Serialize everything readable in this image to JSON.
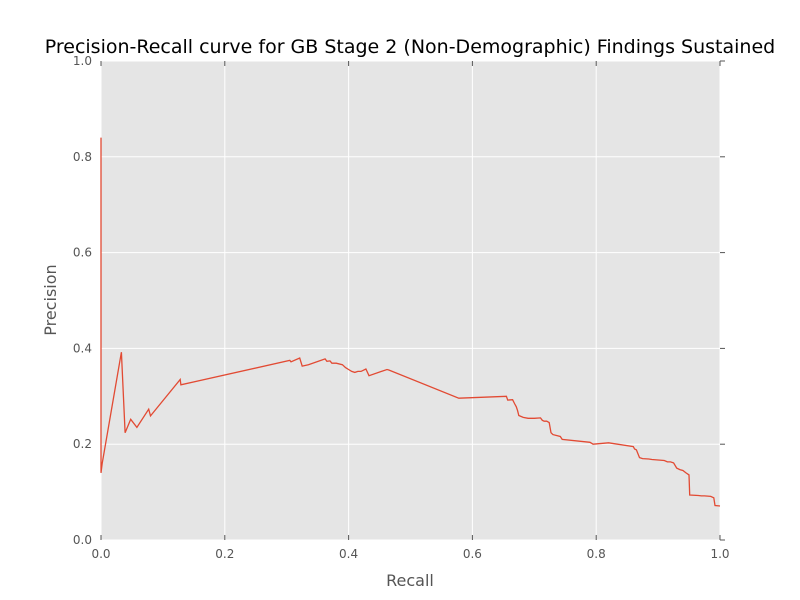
{
  "chart_data": {
    "type": "line",
    "title": "Precision-Recall curve for GB Stage 2 (Non-Demographic) Findings Sustained",
    "xlabel": "Recall",
    "ylabel": "Precision",
    "xlim": [
      0,
      1
    ],
    "ylim": [
      0,
      1
    ],
    "xticks": [
      "0.0",
      "0.2",
      "0.4",
      "0.6",
      "0.8",
      "1.0"
    ],
    "yticks": [
      "0.0",
      "0.2",
      "0.4",
      "0.6",
      "0.8",
      "1.0"
    ],
    "grid": true,
    "legend": "none",
    "background_color": "#e5e5e5",
    "grid_color": "#ffffff",
    "series": [
      {
        "color": "#e24a33",
        "x": [
          0.0,
          0.0,
          0.002,
          0.033,
          0.039,
          0.048,
          0.058,
          0.077,
          0.08,
          0.128,
          0.129,
          0.305,
          0.307,
          0.321,
          0.325,
          0.335,
          0.362,
          0.365,
          0.37,
          0.373,
          0.38,
          0.39,
          0.395,
          0.4,
          0.405,
          0.41,
          0.415,
          0.42,
          0.428,
          0.433,
          0.462,
          0.465,
          0.578,
          0.655,
          0.657,
          0.665,
          0.668,
          0.671,
          0.673,
          0.675,
          0.682,
          0.69,
          0.7,
          0.71,
          0.713,
          0.716,
          0.72,
          0.724,
          0.727,
          0.73,
          0.742,
          0.745,
          0.79,
          0.795,
          0.82,
          0.86,
          0.862,
          0.865,
          0.87,
          0.875,
          0.885,
          0.89,
          0.9,
          0.91,
          0.915,
          0.92,
          0.925,
          0.93,
          0.935,
          0.94,
          0.945,
          0.95,
          0.951,
          0.965,
          0.97,
          0.975,
          0.985,
          0.99,
          0.992,
          1.0
        ],
        "y": [
          0.84,
          0.14,
          0.16,
          0.392,
          0.224,
          0.252,
          0.235,
          0.273,
          0.259,
          0.335,
          0.324,
          0.375,
          0.372,
          0.38,
          0.363,
          0.366,
          0.378,
          0.373,
          0.374,
          0.369,
          0.369,
          0.366,
          0.36,
          0.356,
          0.352,
          0.35,
          0.352,
          0.352,
          0.357,
          0.343,
          0.356,
          0.355,
          0.296,
          0.3,
          0.292,
          0.293,
          0.285,
          0.278,
          0.27,
          0.26,
          0.256,
          0.254,
          0.254,
          0.255,
          0.25,
          0.248,
          0.248,
          0.245,
          0.224,
          0.22,
          0.216,
          0.21,
          0.204,
          0.2,
          0.203,
          0.195,
          0.19,
          0.188,
          0.172,
          0.17,
          0.169,
          0.168,
          0.167,
          0.166,
          0.163,
          0.163,
          0.161,
          0.15,
          0.147,
          0.145,
          0.14,
          0.136,
          0.094,
          0.093,
          0.092,
          0.092,
          0.091,
          0.088,
          0.072,
          0.071
        ]
      }
    ]
  }
}
